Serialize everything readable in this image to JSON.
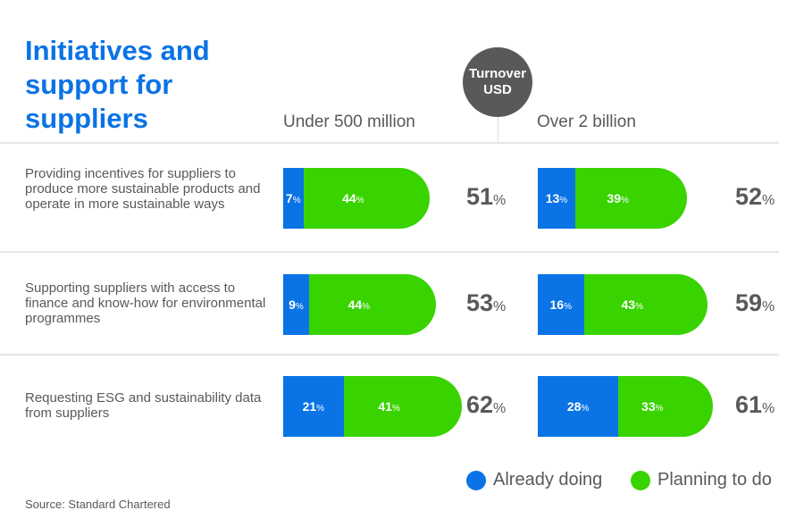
{
  "chart_data": {
    "type": "bar",
    "stacked": true,
    "title": "Initiatives and support for suppliers",
    "badge": "Turnover USD",
    "groups": [
      "Under 500 million",
      "Over 2 billion"
    ],
    "categories": [
      "Providing incentives for suppliers to produce more sustainable products and operate in more sustainable ways",
      "Supporting suppliers with access to finance and know-how for environmental programmes",
      "Requesting ESG and sustainability data from suppliers"
    ],
    "series": [
      {
        "name": "Already doing",
        "color": "#0a73e6",
        "values": [
          [
            7,
            13
          ],
          [
            9,
            16
          ],
          [
            21,
            28
          ]
        ]
      },
      {
        "name": "Planning to do",
        "color": "#39d300",
        "values": [
          [
            44,
            39
          ],
          [
            44,
            43
          ],
          [
            41,
            33
          ]
        ]
      }
    ],
    "totals": [
      [
        51,
        52
      ],
      [
        53,
        59
      ],
      [
        62,
        61
      ]
    ],
    "unit": "%",
    "source": "Source: Standard Chartered"
  }
}
